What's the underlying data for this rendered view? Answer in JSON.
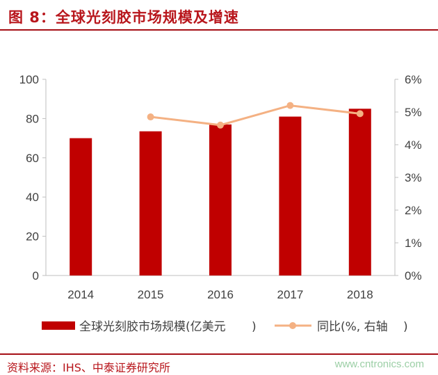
{
  "header": {
    "title": "图 8：全球光刻胶市场规模及增速"
  },
  "footer": {
    "source": "资料来源：IHS、中泰证券研究所",
    "watermark": "www.cntronics.com"
  },
  "chart_data": {
    "type": "bar",
    "categories": [
      "2014",
      "2015",
      "2016",
      "2017",
      "2018"
    ],
    "series": [
      {
        "name": "全球光刻胶市场规模(亿美元",
        "type": "bar",
        "axis": "left",
        "color": "#c00000",
        "values": [
          70,
          73.5,
          77,
          81,
          85
        ]
      },
      {
        "name": "同比(%, 右轴",
        "type": "line",
        "axis": "right",
        "color": "#f4b183",
        "values": [
          null,
          4.85,
          4.6,
          5.2,
          4.95
        ]
      }
    ],
    "ylim": [
      0,
      100
    ],
    "yticks": [
      "0",
      "20",
      "40",
      "60",
      "80",
      "100"
    ],
    "y2lim": [
      0,
      6
    ],
    "y2ticks": [
      "0%",
      "1%",
      "2%",
      "3%",
      "4%",
      "5%",
      "6%"
    ],
    "grid": false,
    "legend_position": "bottom"
  }
}
